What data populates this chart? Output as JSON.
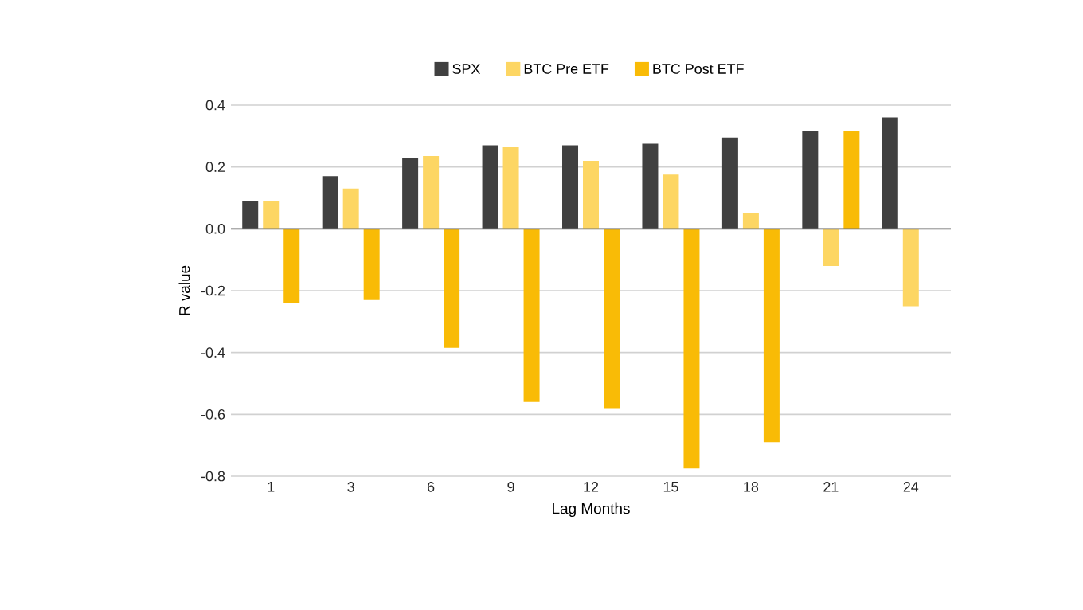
{
  "chart_data": {
    "type": "bar",
    "xlabel": "Lag Months",
    "ylabel": "R value",
    "categories": [
      "1",
      "3",
      "6",
      "9",
      "12",
      "15",
      "18",
      "21",
      "24"
    ],
    "series": [
      {
        "name": "SPX",
        "color": "#404040",
        "values": [
          0.09,
          0.17,
          0.23,
          0.27,
          0.27,
          0.275,
          0.295,
          0.315,
          0.36
        ]
      },
      {
        "name": "BTC Pre ETF",
        "color": "#fdd663",
        "values": [
          0.09,
          0.13,
          0.235,
          0.265,
          0.22,
          0.175,
          0.05,
          -0.12,
          -0.25
        ]
      },
      {
        "name": "BTC Post ETF",
        "color": "#f9bb06",
        "values": [
          -0.24,
          -0.23,
          -0.385,
          -0.56,
          -0.58,
          -0.775,
          -0.69,
          0.315,
          null
        ]
      }
    ],
    "ylim": [
      -0.8,
      0.4
    ],
    "yticks": [
      {
        "value": -0.8,
        "label": "-0.8"
      },
      {
        "value": -0.6,
        "label": "-0.6"
      },
      {
        "value": -0.4,
        "label": "-0.4"
      },
      {
        "value": -0.2,
        "label": "-0.2"
      },
      {
        "value": 0,
        "label": "0.0"
      },
      {
        "value": 0.2,
        "label": "0.2"
      },
      {
        "value": 0.4,
        "label": "0.4"
      }
    ],
    "grid": "y",
    "legend": "top"
  }
}
